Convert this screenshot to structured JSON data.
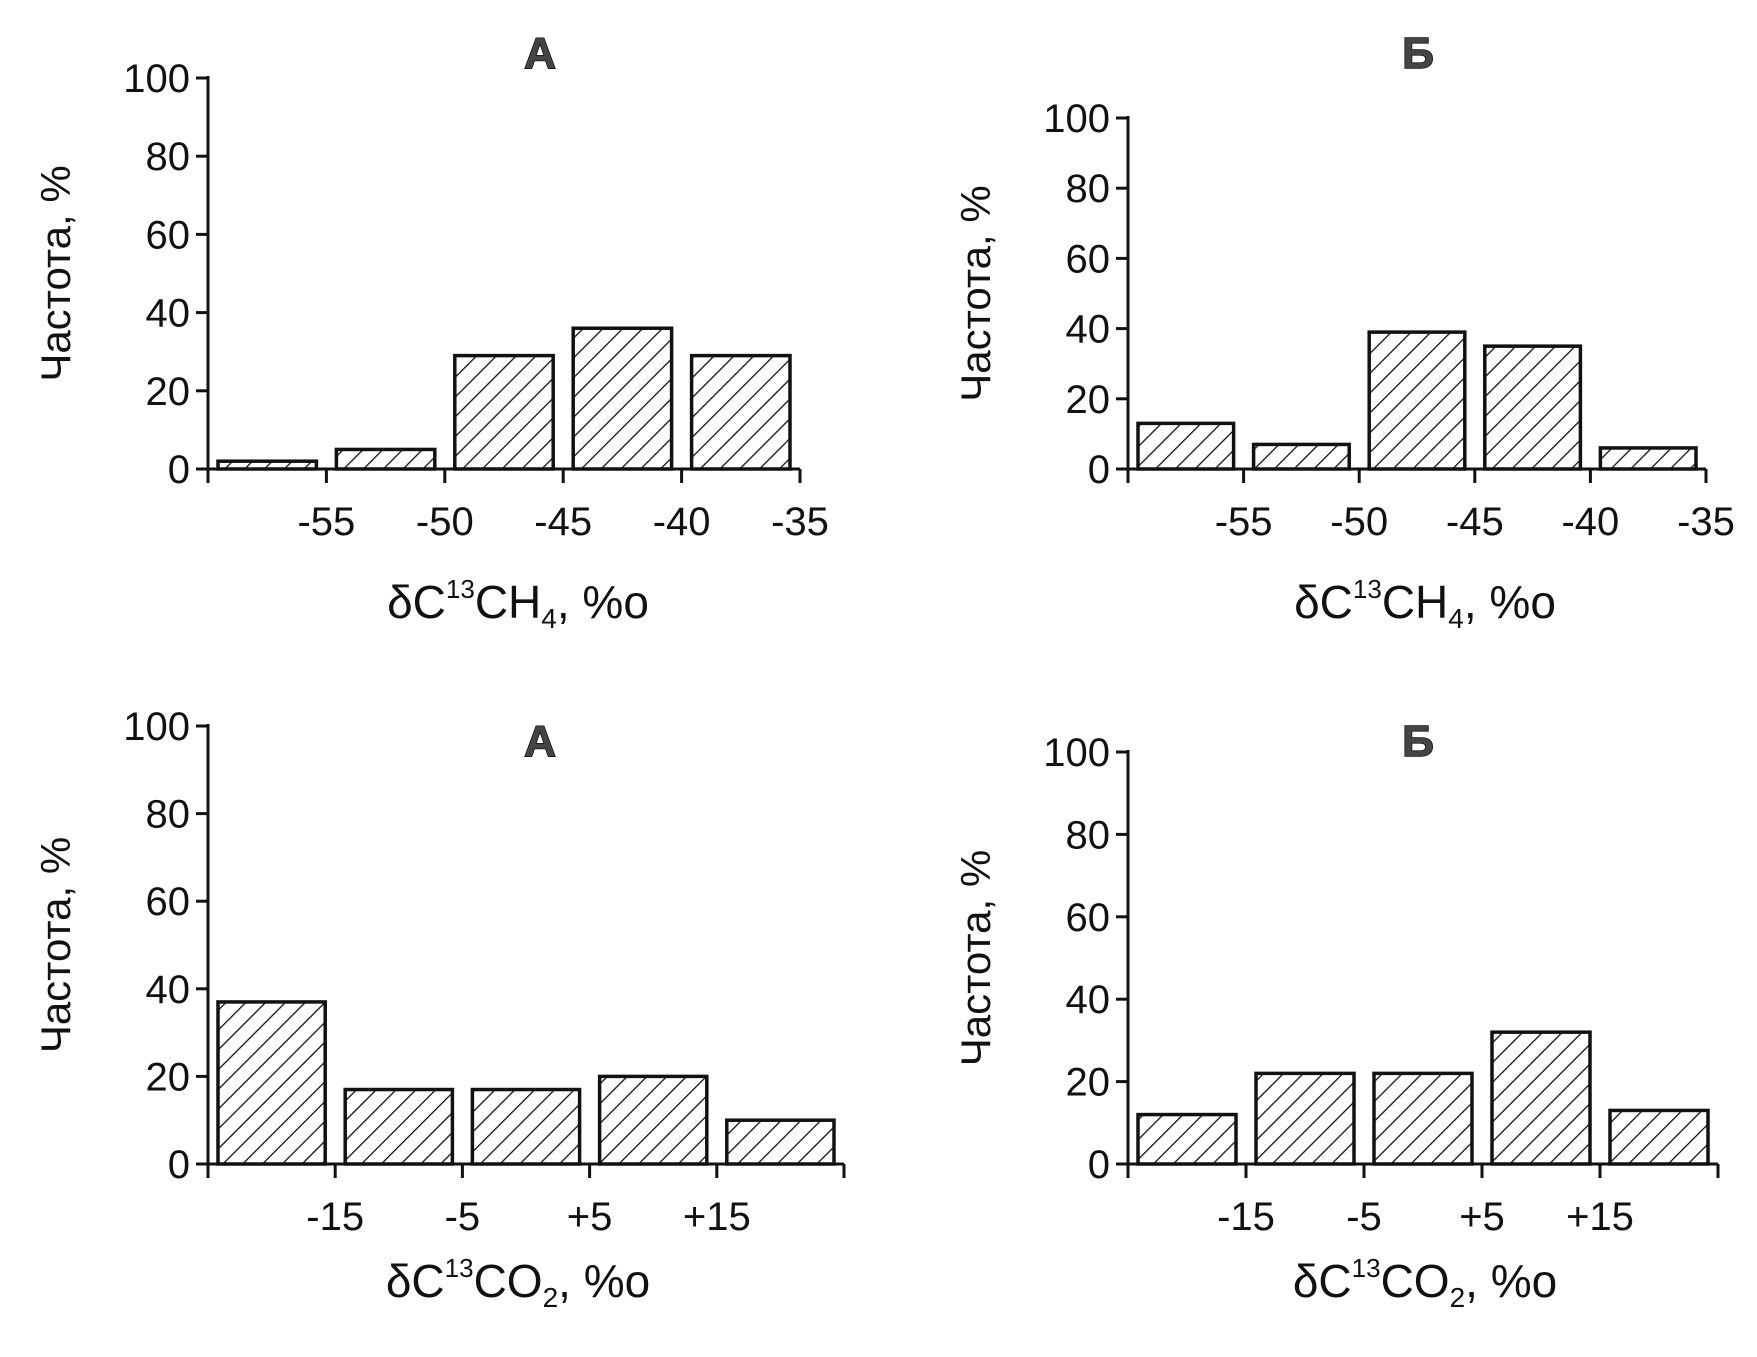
{
  "chart_data": [
    {
      "type": "bar",
      "title": "А",
      "ylabel": "Частота, %",
      "xlabel": {
        "prefix": "δC",
        "sup": "13",
        "mid": "CH",
        "sub": "4",
        "suffix": ", %o"
      },
      "xlim": [
        -60,
        -35
      ],
      "ylim": [
        0,
        100
      ],
      "yticks": [
        0,
        20,
        40,
        60,
        80,
        100
      ],
      "xticks": [
        {
          "value": -55,
          "label": "-55"
        },
        {
          "value": -50,
          "label": "-50"
        },
        {
          "value": -45,
          "label": "-45"
        },
        {
          "value": -40,
          "label": "-40"
        },
        {
          "value": -35,
          "label": "-35"
        }
      ],
      "bins": [
        {
          "from": -60,
          "to": -55,
          "value": 2
        },
        {
          "from": -55,
          "to": -50,
          "value": 5
        },
        {
          "from": -50,
          "to": -45,
          "value": 29
        },
        {
          "from": -45,
          "to": -40,
          "value": 36
        },
        {
          "from": -40,
          "to": -35,
          "value": 29
        }
      ],
      "fill": "diagonal-hatch"
    },
    {
      "type": "bar",
      "title": "Б",
      "ylabel": "Частота, %",
      "xlabel": {
        "prefix": "δC",
        "sup": "13",
        "mid": "CH",
        "sub": "4",
        "suffix": ", %o"
      },
      "xlim": [
        -60,
        -35
      ],
      "ylim": [
        0,
        100
      ],
      "yticks": [
        0,
        20,
        40,
        60,
        80,
        100
      ],
      "xticks": [
        {
          "value": -55,
          "label": "-55"
        },
        {
          "value": -50,
          "label": "-50"
        },
        {
          "value": -45,
          "label": "-45"
        },
        {
          "value": -40,
          "label": "-40"
        },
        {
          "value": -35,
          "label": "-35"
        }
      ],
      "bins": [
        {
          "from": -60,
          "to": -55,
          "value": 13
        },
        {
          "from": -55,
          "to": -50,
          "value": 7
        },
        {
          "from": -50,
          "to": -45,
          "value": 39
        },
        {
          "from": -45,
          "to": -40,
          "value": 35
        },
        {
          "from": -40,
          "to": -35,
          "value": 6
        }
      ],
      "fill": "diagonal-hatch"
    },
    {
      "type": "bar",
      "title": "А",
      "ylabel": "Частота, %",
      "xlabel": {
        "prefix": "δC",
        "sup": "13",
        "mid": "CO",
        "sub": "2",
        "suffix": ", %o"
      },
      "xlim": [
        -25,
        25
      ],
      "ylim": [
        0,
        100
      ],
      "yticks": [
        0,
        20,
        40,
        60,
        80,
        100
      ],
      "xticks": [
        {
          "value": -15,
          "label": "-15"
        },
        {
          "value": -5,
          "label": "-5"
        },
        {
          "value": 5,
          "label": "+5"
        },
        {
          "value": 15,
          "label": "+15"
        }
      ],
      "bins": [
        {
          "from": -25,
          "to": -15,
          "value": 37
        },
        {
          "from": -15,
          "to": -5,
          "value": 17
        },
        {
          "from": -5,
          "to": 5,
          "value": 17
        },
        {
          "from": 5,
          "to": 15,
          "value": 20
        },
        {
          "from": 15,
          "to": 25,
          "value": 10
        }
      ],
      "fill": "diagonal-hatch"
    },
    {
      "type": "bar",
      "title": "Б",
      "ylabel": "Частота, %",
      "xlabel": {
        "prefix": "δC",
        "sup": "13",
        "mid": "CO",
        "sub": "2",
        "suffix": ", %o"
      },
      "xlim": [
        -25,
        25
      ],
      "ylim": [
        0,
        100
      ],
      "yticks": [
        0,
        20,
        40,
        60,
        80,
        100
      ],
      "xticks": [
        {
          "value": -15,
          "label": "-15"
        },
        {
          "value": -5,
          "label": "-5"
        },
        {
          "value": 5,
          "label": "+5"
        },
        {
          "value": 15,
          "label": "+15"
        }
      ],
      "bins": [
        {
          "from": -25,
          "to": -15,
          "value": 12
        },
        {
          "from": -15,
          "to": -5,
          "value": 22
        },
        {
          "from": -5,
          "to": 5,
          "value": 22
        },
        {
          "from": 5,
          "to": 15,
          "value": 32
        },
        {
          "from": 15,
          "to": 25,
          "value": 13
        }
      ],
      "fill": "diagonal-hatch"
    }
  ]
}
